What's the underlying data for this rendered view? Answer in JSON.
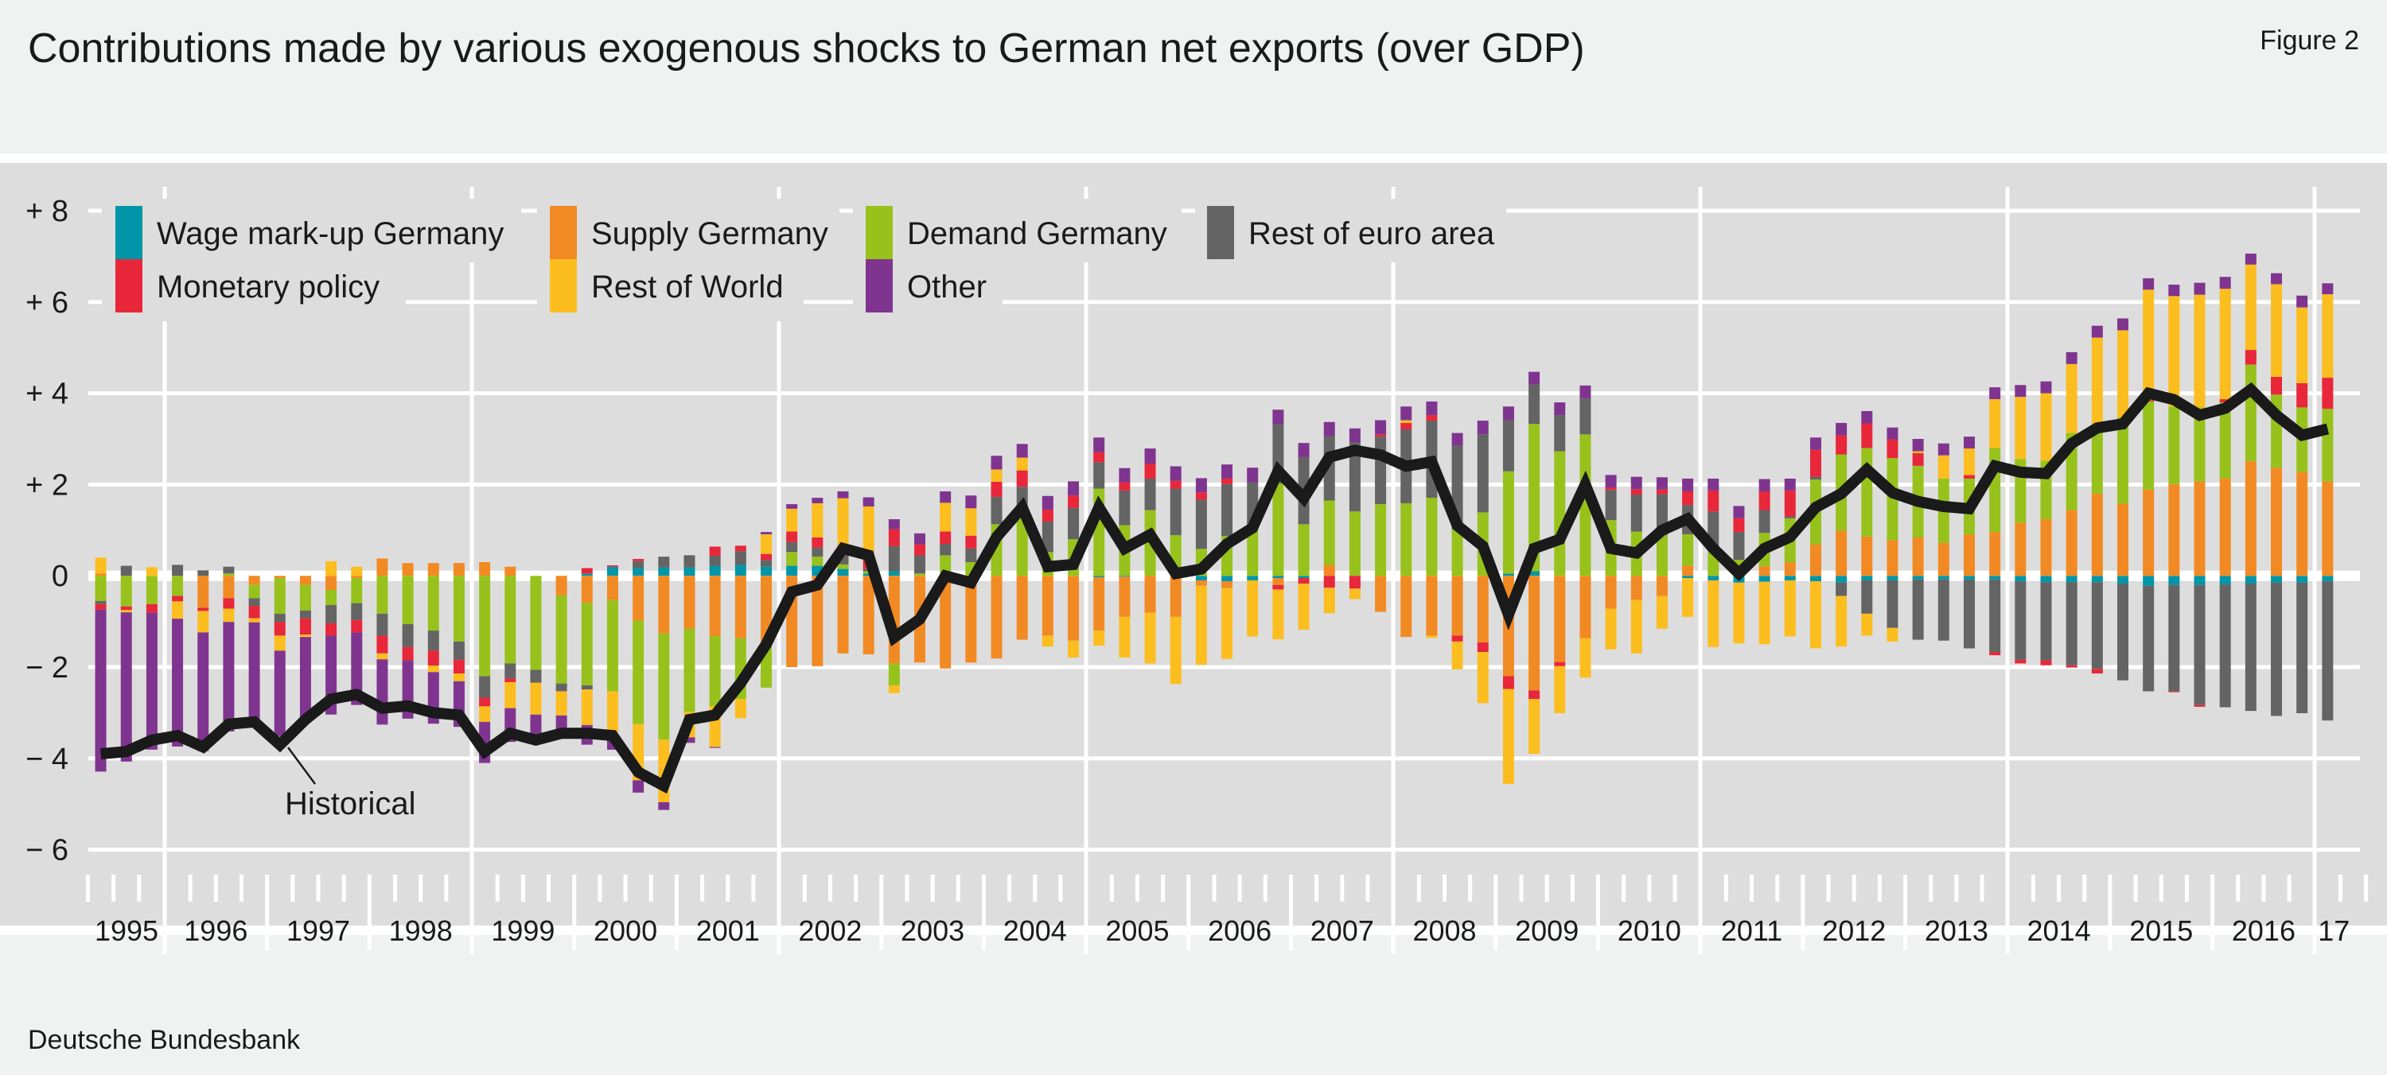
{
  "header": {
    "title": "Contributions made by various exogenous shocks to German net exports (over GDP)",
    "figure_label": "Figure 2"
  },
  "footer": {
    "source": "Deutsche Bundesbank"
  },
  "colors": {
    "wage": "#0096a8",
    "monetary": "#e8273a",
    "supply": "#f28a24",
    "row": "#fcbd1f",
    "demand": "#97c21c",
    "rest_euro": "#646464",
    "other": "#7f358f",
    "historical": "#1a1a1a",
    "plot_background": "#dddddd",
    "gridline": "#ffffff"
  },
  "chart_data": {
    "type": "bar",
    "stacked": true,
    "frequency": "quarterly",
    "title": "Contributions made by various exogenous shocks to German net exports (over GDP)",
    "xlabel": "",
    "ylabel": "",
    "ylim": [
      -6,
      8
    ],
    "y_ticks": [
      8,
      6,
      4,
      2,
      0,
      -2,
      -4,
      -6
    ],
    "y_tick_labels": [
      "+ 8",
      "+ 6",
      "+ 4",
      "+ 2",
      "0",
      "− 2",
      "− 4",
      "− 6"
    ],
    "x_tick_labels": [
      "1995",
      "1996",
      "1997",
      "1998",
      "1999",
      "2000",
      "2001",
      "2002",
      "2003",
      "2004",
      "2005",
      "2006",
      "2007",
      "2008",
      "2009",
      "2010",
      "2011",
      "2012",
      "2013",
      "2014",
      "2015",
      "2016",
      "17"
    ],
    "grid": true,
    "legend_placement": "top-left",
    "x": [
      "1995 Q2",
      "1995 Q3",
      "1995 Q4",
      "1996 Q1",
      "1996 Q2",
      "1996 Q3",
      "1996 Q4",
      "1997 Q1",
      "1997 Q2",
      "1997 Q3",
      "1997 Q4",
      "1998 Q1",
      "1998 Q2",
      "1998 Q3",
      "1998 Q4",
      "1999 Q1",
      "1999 Q2",
      "1999 Q3",
      "1999 Q4",
      "2000 Q1",
      "2000 Q2",
      "2000 Q3",
      "2000 Q4",
      "2001 Q1",
      "2001 Q2",
      "2001 Q3",
      "2001 Q4",
      "2002 Q1",
      "2002 Q2",
      "2002 Q3",
      "2002 Q4",
      "2003 Q1",
      "2003 Q2",
      "2003 Q3",
      "2003 Q4",
      "2004 Q1",
      "2004 Q2",
      "2004 Q3",
      "2004 Q4",
      "2005 Q1",
      "2005 Q2",
      "2005 Q3",
      "2005 Q4",
      "2006 Q1",
      "2006 Q2",
      "2006 Q3",
      "2006 Q4",
      "2007 Q1",
      "2007 Q2",
      "2007 Q3",
      "2007 Q4",
      "2008 Q1",
      "2008 Q2",
      "2008 Q3",
      "2008 Q4",
      "2009 Q1",
      "2009 Q2",
      "2009 Q3",
      "2009 Q4",
      "2010 Q1",
      "2010 Q2",
      "2010 Q3",
      "2010 Q4",
      "2011 Q1",
      "2011 Q2",
      "2011 Q3",
      "2011 Q4",
      "2012 Q1",
      "2012 Q2",
      "2012 Q3",
      "2012 Q4",
      "2013 Q1",
      "2013 Q2",
      "2013 Q3",
      "2013 Q4",
      "2014 Q1",
      "2014 Q2",
      "2014 Q3",
      "2014 Q4",
      "2015 Q1",
      "2015 Q2",
      "2015 Q3",
      "2015 Q4",
      "2016 Q1",
      "2016 Q2",
      "2016 Q3",
      "2016 Q4",
      "2017 Q1"
    ],
    "series": [
      {
        "key": "wage",
        "name": "Wage mark-up Germany",
        "values": [
          0,
          0,
          0,
          0,
          0,
          0,
          0,
          0,
          0,
          0,
          0,
          0,
          0,
          0,
          0,
          0,
          0,
          0,
          0,
          0.05,
          0.2,
          0.17,
          0.18,
          0.18,
          0.22,
          0.24,
          0.2,
          0.22,
          0.22,
          0.15,
          0.05,
          0.1,
          0,
          0,
          0,
          0,
          0,
          0,
          0,
          -0.03,
          -0.02,
          0,
          0,
          -0.1,
          -0.12,
          -0.1,
          -0.05,
          -0.05,
          0,
          0,
          0,
          0,
          0,
          0,
          0,
          0.05,
          0.1,
          0,
          0,
          0,
          0,
          0,
          -0.05,
          -0.1,
          -0.15,
          -0.13,
          -0.1,
          -0.12,
          -0.15,
          -0.1,
          -0.1,
          -0.08,
          -0.08,
          -0.08,
          -0.08,
          -0.12,
          -0.14,
          -0.14,
          -0.14,
          -0.17,
          -0.22,
          -0.2,
          -0.2,
          -0.19,
          -0.17,
          -0.15,
          -0.15,
          -0.12
        ]
      },
      {
        "key": "monetary",
        "name": "Monetary policy",
        "values": [
          -0.12,
          -0.08,
          -0.19,
          -0.12,
          -0.07,
          -0.23,
          -0.27,
          -0.3,
          -0.36,
          -0.27,
          -0.27,
          -0.39,
          -0.29,
          -0.33,
          -0.3,
          -0.19,
          -0.08,
          0,
          0,
          0.12,
          0.03,
          0.05,
          0,
          0,
          0.2,
          0.12,
          0.13,
          0.23,
          0.22,
          0.2,
          0.22,
          0.37,
          0.24,
          0.27,
          0.28,
          0.33,
          0.36,
          0.26,
          0.27,
          0.22,
          0.18,
          0.33,
          0.17,
          0.16,
          0.12,
          0,
          -0.1,
          -0.12,
          -0.26,
          -0.28,
          0.05,
          0.14,
          0.12,
          -0.13,
          -0.21,
          -0.28,
          -0.19,
          -0.09,
          0,
          0.05,
          0.12,
          0.1,
          0.3,
          0.46,
          0.3,
          0.41,
          0.57,
          0.59,
          0.42,
          0.54,
          0.41,
          0.28,
          0,
          0.08,
          -0.07,
          -0.08,
          -0.11,
          -0.05,
          -0.1,
          0,
          0.03,
          -0.02,
          -0.04,
          0.07,
          0.32,
          0.39,
          0.53,
          0.68
        ]
      },
      {
        "key": "supply",
        "name": "Supply Germany",
        "values": [
          0.05,
          0,
          0,
          0,
          -0.7,
          -0.49,
          -0.2,
          -0.05,
          -0.2,
          -0.31,
          -0.05,
          0.38,
          0.28,
          0.28,
          0.28,
          0.3,
          0.2,
          0,
          -0.43,
          -0.59,
          -0.53,
          -0.98,
          -1.26,
          -1.16,
          -1.32,
          -1.37,
          -1.53,
          -2.0,
          -1.98,
          -1.7,
          -1.72,
          -1.92,
          -1.9,
          -2.03,
          -1.9,
          -1.81,
          -1.4,
          -1.31,
          -1.42,
          -1.17,
          -0.88,
          -0.81,
          -0.9,
          -0.12,
          -0.15,
          0,
          -0.15,
          0,
          0.24,
          0,
          -0.79,
          -1.34,
          -1.31,
          -1.31,
          -1.46,
          -2.2,
          -2.51,
          -1.89,
          -1.37,
          -0.72,
          -0.53,
          -0.44,
          0.22,
          0,
          0,
          0.21,
          0.3,
          0.69,
          0.99,
          0.86,
          0.78,
          0.84,
          0.72,
          0.91,
          0.96,
          1.16,
          1.24,
          1.44,
          1.8,
          1.58,
          1.89,
          2.01,
          2.07,
          2.13,
          2.51,
          2.37,
          2.28,
          2.07
        ]
      },
      {
        "key": "row",
        "name": "Rest of World",
        "values": [
          0.35,
          -0.05,
          0.19,
          -0.38,
          -0.47,
          -0.29,
          -0.09,
          -0.33,
          -0.05,
          0.32,
          0.2,
          -0.13,
          0,
          -0.14,
          -0.17,
          -0.34,
          -0.57,
          -0.7,
          -0.53,
          -0.78,
          -1.0,
          -1.23,
          -1.37,
          -0.56,
          -0.89,
          -0.42,
          0.43,
          0.5,
          0.75,
          1.05,
          1.15,
          -0.17,
          0,
          0.63,
          0.6,
          0.27,
          0.28,
          -0.24,
          -0.37,
          -0.33,
          -0.89,
          -1.11,
          -1.47,
          -1.73,
          -1.55,
          -1.23,
          -1.09,
          -1.01,
          -0.56,
          -0.23,
          0,
          0.06,
          -0.05,
          -0.61,
          -1.12,
          -2.08,
          -1.2,
          -1.03,
          -0.86,
          -0.89,
          -1.17,
          -0.72,
          -0.85,
          -1.46,
          -1.33,
          -1.37,
          -1.23,
          -1.47,
          -1.11,
          -0.48,
          -0.3,
          0.04,
          0.51,
          0.58,
          1.07,
          1.36,
          1.48,
          1.51,
          1.98,
          1.91,
          2.42,
          2.42,
          2.47,
          2.42,
          1.87,
          2.03,
          1.66,
          1.83
        ]
      },
      {
        "key": "demand",
        "name": "Demand Germany",
        "values": [
          -0.55,
          -0.67,
          -0.62,
          -0.44,
          0,
          0.05,
          -0.29,
          -0.78,
          -0.56,
          -0.33,
          -0.55,
          -0.83,
          -1.06,
          -1.2,
          -1.44,
          -2.2,
          -1.92,
          -2.06,
          -1.93,
          -1.81,
          -2.0,
          -2.27,
          -2.33,
          -1.82,
          -1.54,
          -1.33,
          -0.92,
          0.3,
          0.2,
          0.1,
          0.05,
          -0.48,
          0.05,
          0.45,
          0.3,
          1.13,
          1.45,
          0.52,
          0.8,
          1.91,
          1.11,
          1.44,
          0.89,
          0.59,
          0.87,
          1.11,
          2.02,
          1.13,
          1.41,
          1.41,
          1.57,
          1.59,
          1.71,
          1.02,
          1.39,
          2.24,
          3.23,
          2.73,
          3.1,
          1.22,
          0.97,
          0.89,
          0.69,
          0.58,
          0.35,
          0.73,
          0.96,
          1.42,
          1.67,
          1.94,
          1.8,
          1.57,
          1.41,
          1.22,
          1.84,
          1.4,
          1.28,
          1.69,
          1.44,
          1.89,
          1.93,
          1.7,
          1.62,
          1.67,
          2.12,
          1.6,
          1.41,
          1.59
        ]
      },
      {
        "key": "rest_euro",
        "name": "Rest of euro area",
        "values": [
          -0.07,
          0.22,
          0,
          0.24,
          0.12,
          0.15,
          -0.17,
          -0.18,
          -0.17,
          -0.4,
          -0.37,
          -0.48,
          -0.5,
          -0.44,
          -0.4,
          -0.47,
          -0.33,
          -0.28,
          -0.17,
          -0.09,
          0,
          0.15,
          0.24,
          0.27,
          0.22,
          0.3,
          0.15,
          0.22,
          0.2,
          0.2,
          0.05,
          0.55,
          0.4,
          0.25,
          0.3,
          0.6,
          0.5,
          0.67,
          0.69,
          0.58,
          0.76,
          0.69,
          1.02,
          1.08,
          1.14,
          0.94,
          1.31,
          1.47,
          1.41,
          1.52,
          1.48,
          1.62,
          1.69,
          1.83,
          1.71,
          1.12,
          0.86,
          0.79,
          0.79,
          0.66,
          0.81,
          0.9,
          0.64,
          0.83,
          0.61,
          0.5,
          0.04,
          0.06,
          -0.29,
          -0.73,
          -1.04,
          -1.32,
          -1.34,
          -1.51,
          -1.59,
          -1.72,
          -1.71,
          -1.82,
          -1.9,
          -2.12,
          -2.31,
          -2.33,
          -2.63,
          -2.69,
          -2.79,
          -2.92,
          -2.86,
          -3.05
        ]
      },
      {
        "key": "other",
        "name": "Other",
        "values": [
          -3.55,
          -3.27,
          -3.0,
          -2.8,
          -2.6,
          -2.4,
          -2.14,
          -1.87,
          -1.82,
          -1.73,
          -1.59,
          -1.43,
          -1.28,
          -1.13,
          -1.0,
          -0.9,
          -0.74,
          -0.47,
          -0.3,
          -0.43,
          -0.28,
          -0.27,
          -0.17,
          -0.12,
          -0.02,
          0,
          0.05,
          0.1,
          0.12,
          0.15,
          0.2,
          0.22,
          0.24,
          0.25,
          0.28,
          0.3,
          0.3,
          0.3,
          0.31,
          0.32,
          0.31,
          0.33,
          0.32,
          0.31,
          0.31,
          0.32,
          0.31,
          0.31,
          0.31,
          0.3,
          0.31,
          0.3,
          0.3,
          0.28,
          0.3,
          0.3,
          0.28,
          0.28,
          0.28,
          0.28,
          0.27,
          0.27,
          0.28,
          0.26,
          0.27,
          0.27,
          0.26,
          0.27,
          0.27,
          0.27,
          0.26,
          0.27,
          0.26,
          0.26,
          0.26,
          0.26,
          0.26,
          0.26,
          0.26,
          0.26,
          0.25,
          0.25,
          0.26,
          0.26,
          0.24,
          0.24,
          0.26,
          0.24
        ]
      }
    ],
    "line": {
      "name": "Historical",
      "values": [
        -3.9,
        -3.85,
        -3.6,
        -3.5,
        -3.75,
        -3.25,
        -3.2,
        -3.7,
        -3.15,
        -2.7,
        -2.6,
        -2.9,
        -2.85,
        -3.0,
        -3.05,
        -3.85,
        -3.45,
        -3.6,
        -3.45,
        -3.45,
        -3.5,
        -4.3,
        -4.6,
        -3.15,
        -3.05,
        -2.35,
        -1.5,
        -0.35,
        -0.2,
        0.6,
        0.45,
        -1.35,
        -0.95,
        0,
        -0.15,
        0.85,
        1.5,
        0.2,
        0.25,
        1.5,
        0.6,
        0.9,
        0.05,
        0.15,
        0.7,
        1.05,
        2.3,
        1.7,
        2.6,
        2.75,
        2.65,
        2.4,
        2.5,
        1.1,
        0.65,
        -0.85,
        0.6,
        0.8,
        2.0,
        0.6,
        0.5,
        1.0,
        1.25,
        0.6,
        0.05,
        0.6,
        0.85,
        1.5,
        1.8,
        2.33,
        1.82,
        1.63,
        1.52,
        1.47,
        2.41,
        2.27,
        2.24,
        2.9,
        3.24,
        3.33,
        4.0,
        3.86,
        3.52,
        3.67,
        4.08,
        3.52,
        3.08,
        3.22
      ]
    }
  }
}
